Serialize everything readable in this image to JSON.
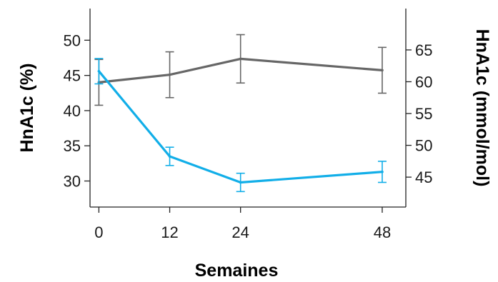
{
  "chart_data": {
    "type": "line",
    "xlabel": "Semaines",
    "ylabel_left": "HnA1c (%)",
    "ylabel_right": "HnA1c (mmol/mol)",
    "x": [
      0,
      12,
      24,
      48
    ],
    "xticks": [
      0,
      12,
      24,
      48
    ],
    "xlim": [
      -1.5,
      52
    ],
    "ylim_left": [
      26.3,
      54.5
    ],
    "yticks_left": [
      30,
      35,
      40,
      45,
      50
    ],
    "ylim_right": [
      40.3,
      71.5
    ],
    "yticks_right": [
      45,
      50,
      55,
      60,
      65
    ],
    "grid": false,
    "legend": "none",
    "series": [
      {
        "axis": "right",
        "color": "#666666",
        "values": [
          59.9,
          61.1,
          63.6,
          61.8
        ],
        "error": [
          3.6,
          3.6,
          3.8,
          3.6
        ]
      },
      {
        "axis": "left",
        "color": "#11aee8",
        "values": [
          45.6,
          33.5,
          29.8,
          31.3
        ],
        "error": [
          1.8,
          1.3,
          1.3,
          1.5
        ]
      }
    ]
  }
}
